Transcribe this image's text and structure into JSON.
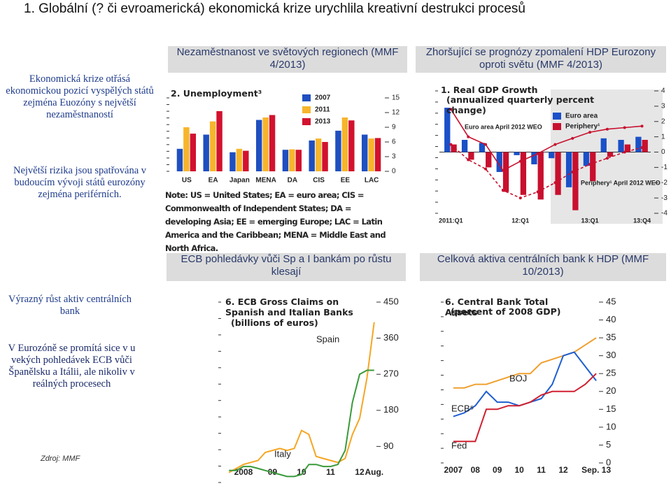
{
  "slide": {
    "title": "1. Globální (? či evroamerická) ekonomická krize urychlila kreativní destrukci procesů",
    "text_1": "Ekonomická krize otřásá ekonomickou pozicí vyspělých států zejména Euozóny s největší nezaměstnaností",
    "text_2": "Největší rizika jsou spatřována v budoucím vývoji států eurozóny zejména periférních.",
    "text_3": "Výrazný růst aktiv centrálních bank",
    "text_4": "V Eurozóně se promítá sice v u vekých pohledávek ECB vůči Španělsku a Itálii, ale nikoliv v reálných procesech",
    "source": "Zdroj: MMF",
    "headers": [
      "Nezaměstnanost ve světových regionech (MMF 4/2013)",
      "Zhoršující se prognózy zpomalení HDP Eurozony oproti světu (MMF 4/2013)",
      "ECB pohledávky vůči Sp a I bankám po růstu klesají",
      "Celková aktiva centrálních bank k HDP (MMF 10/2013)"
    ]
  },
  "chart_data": [
    {
      "type": "bar",
      "title": "2. Unemployment³",
      "categories": [
        "US",
        "EA",
        "Japan",
        "MENA",
        "DA",
        "CIS",
        "EE",
        "LAC"
      ],
      "series": [
        {
          "name": "2007",
          "color": "#1f4fc0",
          "values": [
            4.6,
            7.5,
            3.9,
            10.5,
            4.4,
            6.3,
            8.3,
            7.5
          ]
        },
        {
          "name": "2011",
          "color": "#f7b52c",
          "values": [
            9.0,
            10.2,
            4.6,
            11.0,
            4.5,
            6.7,
            11.0,
            6.7
          ]
        },
        {
          "name": "2013",
          "color": "#d2122e",
          "values": [
            7.7,
            12.3,
            4.2,
            11.5,
            4.4,
            6.0,
            10.4,
            6.8
          ]
        }
      ],
      "ylim": [
        0,
        15
      ],
      "yticks": [
        0,
        3,
        6,
        9,
        12,
        15
      ],
      "note": "Note: US = United States; EA = euro area; CIS = Commonwealth of Independent States; DA = developing Asia; EE = emerging Europe; LAC = Latin America and the Caribbean; MENA = Middle East and North Africa."
    },
    {
      "type": "bar",
      "title": "1. Real GDP Growth",
      "subtitle": "(annualized quarterly percent change)",
      "categories": [
        "2011:Q1",
        null,
        null,
        null,
        "12:Q1",
        null,
        null,
        null,
        "13:Q1",
        null,
        null,
        "13:Q4"
      ],
      "series": [
        {
          "name": "Euro area",
          "color": "#1a50c8",
          "values": [
            2.9,
            0.8,
            0.6,
            -1.3,
            -0.2,
            -0.8,
            -0.4,
            -2.3,
            -0.9,
            0.9,
            0.8,
            1.0
          ]
        },
        {
          "name": "Periphery¹",
          "color": "#c8102e",
          "values": [
            0.5,
            -0.5,
            -1.0,
            -2.6,
            -2.8,
            -3.1,
            -2.8,
            -3.8,
            -1.9,
            -0.3,
            0.5,
            0.8
          ]
        },
        {
          "name": "Euro area April 2012 WEO",
          "type": "line",
          "color": "#c8102e",
          "values": [
            2.8,
            1.0,
            0.5,
            -1.2,
            -0.6,
            -0.1,
            0.5,
            0.9,
            1.3,
            1.5,
            1.6,
            1.7
          ]
        },
        {
          "name": "Periphery¹ April 2012 WEO",
          "type": "line",
          "dash": true,
          "color": "#c8102e",
          "values": [
            0.5,
            -0.5,
            -1.1,
            -2.5,
            -3.0,
            -2.6,
            -2.0,
            -1.3,
            -0.8,
            -0.4,
            0.0,
            0.3
          ]
        }
      ],
      "ylim": [
        -4,
        4
      ],
      "yticks": [
        -4,
        -3,
        -2,
        -1,
        0,
        1,
        2,
        3,
        4
      ]
    },
    {
      "type": "line",
      "title": "6. ECB Gross Claims on Spanish and Italian Banks",
      "subtitle": "(billions of euros)",
      "categories": [
        null,
        null,
        "2008",
        null,
        null,
        null,
        "09",
        null,
        null,
        null,
        "10",
        null,
        null,
        null,
        "11",
        null,
        null,
        null,
        "12",
        null,
        "Aug."
      ],
      "series": [
        {
          "name": "Spain",
          "color": "#f5a623",
          "values": [
            25,
            35,
            45,
            50,
            55,
            75,
            80,
            85,
            80,
            85,
            130,
            120,
            65,
            60,
            55,
            50,
            60,
            120,
            160,
            260,
            400
          ]
        },
        {
          "name": "Italy",
          "color": "#3a9a3a",
          "values": [
            30,
            30,
            40,
            40,
            35,
            30,
            25,
            20,
            15,
            15,
            20,
            45,
            45,
            40,
            40,
            45,
            80,
            200,
            270,
            280,
            280
          ]
        }
      ],
      "ylim": [
        0,
        450
      ],
      "yticks": [
        90,
        180,
        270,
        360,
        450
      ]
    },
    {
      "type": "line",
      "title": "6. Central Bank Total Assets",
      "subtitle": "(percent of 2008 GDP)",
      "categories": [
        "2007",
        null,
        "08",
        null,
        "09",
        null,
        "10",
        null,
        "11",
        null,
        "12",
        null,
        null,
        "Sep. 13"
      ],
      "series": [
        {
          "name": "BOJ",
          "color": "#f0a030",
          "values": [
            21,
            21,
            22,
            22,
            23,
            24,
            25,
            25,
            28,
            29,
            30,
            31,
            33,
            35
          ]
        },
        {
          "name": "ECB⁵",
          "color": "#1f5fd0",
          "values": [
            13,
            14,
            16,
            20,
            17,
            17,
            16,
            17,
            18,
            22,
            30,
            31,
            27,
            23
          ]
        },
        {
          "name": "Fed",
          "color": "#d02030",
          "values": [
            6,
            6,
            6,
            15,
            15,
            16,
            16,
            17,
            19,
            20,
            20,
            20,
            22,
            25
          ]
        }
      ],
      "ylim": [
        0,
        45
      ],
      "yticks": [
        0,
        5,
        10,
        15,
        20,
        25,
        30,
        35,
        40,
        45
      ]
    }
  ]
}
